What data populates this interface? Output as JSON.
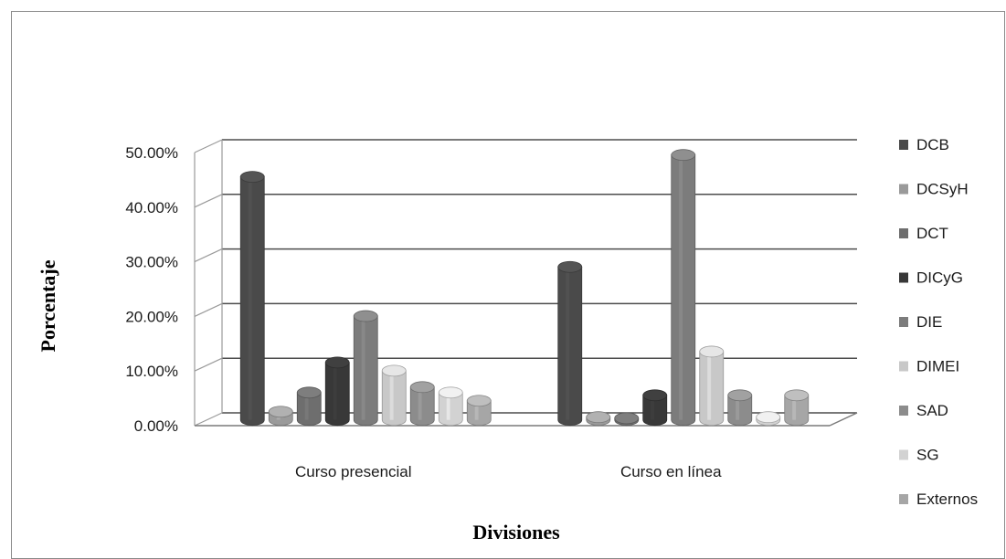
{
  "chart_data": {
    "type": "bar",
    "title": "",
    "xlabel": "Divisiones",
    "ylabel": "Porcentaje",
    "ylim": [
      0,
      50
    ],
    "yticks": [
      "0.00%",
      "10.00%",
      "20.00%",
      "30.00%",
      "40.00%",
      "50.00%"
    ],
    "categories": [
      "Curso presencial",
      "Curso en línea"
    ],
    "series": [
      {
        "name": "DCB",
        "color": "#4a4a4a",
        "values": [
          44.5,
          28.0
        ]
      },
      {
        "name": "DCSyH",
        "color": "#9a9a9a",
        "values": [
          1.5,
          0.5
        ]
      },
      {
        "name": "DCT",
        "color": "#6e6e6e",
        "values": [
          5.0,
          0.3
        ]
      },
      {
        "name": "DICyG",
        "color": "#383838",
        "values": [
          10.5,
          4.5
        ]
      },
      {
        "name": "DIE",
        "color": "#7c7c7c",
        "values": [
          19.0,
          48.5
        ]
      },
      {
        "name": "DIMEI",
        "color": "#c8c8c8",
        "values": [
          9.0,
          12.5
        ]
      },
      {
        "name": "SAD",
        "color": "#8c8c8c",
        "values": [
          6.0,
          4.5
        ]
      },
      {
        "name": "SG",
        "color": "#d2d2d2",
        "values": [
          5.0,
          0.5
        ]
      },
      {
        "name": "Externos",
        "color": "#a6a6a6",
        "values": [
          3.5,
          4.5
        ]
      }
    ],
    "grid": true,
    "legend": "right"
  }
}
